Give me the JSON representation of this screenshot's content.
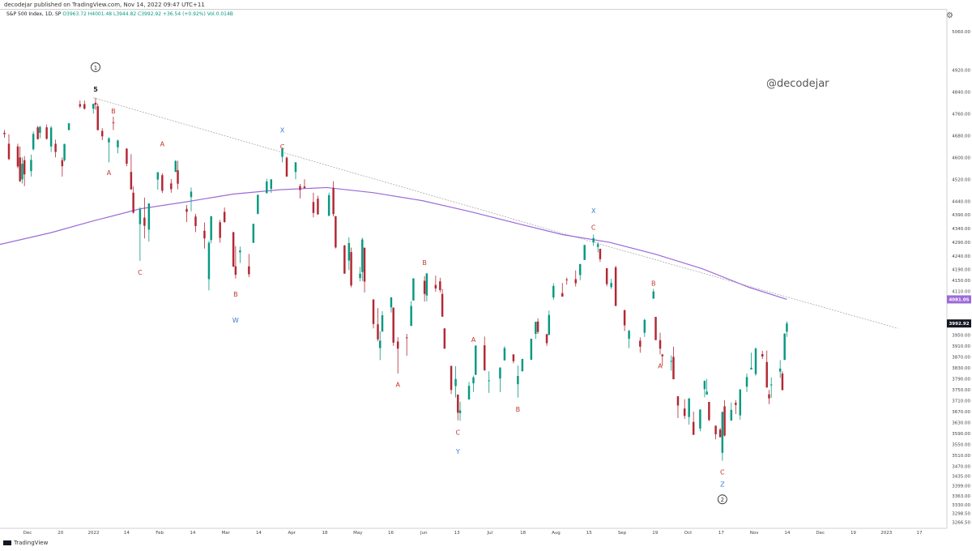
{
  "header": {
    "published": "decodejar published on TradingView.com, Nov 14, 2022 09:47 UTC+11"
  },
  "legend": {
    "symbol": "S&P 500 Index, 1D, SP",
    "ohlc": "O3963.72 H4001.48 L3944.82 C3992.92 +36.54 (+0.92%) Vol.0.014B"
  },
  "watermark": "@decodejar",
  "settings_icon": "gear-icon",
  "footer": {
    "logo_icon": "tradingview-logo-icon",
    "brand": "TradingView"
  },
  "colors": {
    "up": "#089981",
    "down": "#b22833",
    "ma": "#9c6ad8",
    "wave_abc": "#c0392b",
    "wave_wxyz": "#3a7bd5",
    "trendline": "#aaaaaa"
  },
  "chart_data": {
    "type": "candlestick",
    "y_axis": {
      "ticks": [
        "5060.00",
        "4920.00",
        "4840.00",
        "4760.00",
        "4680.00",
        "4600.00",
        "4520.00",
        "4440.00",
        "4390.00",
        "4340.00",
        "4290.00",
        "4240.00",
        "4190.00",
        "4150.00",
        "4110.00",
        "4000.00",
        "3950.00",
        "3910.00",
        "3870.00",
        "3830.00",
        "3790.00",
        "3750.00",
        "3710.00",
        "3670.00",
        "3630.00",
        "3590.00",
        "3550.00",
        "3510.00",
        "3470.00",
        "3435.00",
        "3399.00",
        "3363.00",
        "3330.00",
        "3298.50",
        "3266.50"
      ],
      "range": [
        3250,
        5140
      ],
      "last_price_label": "3992.92",
      "ma_label": "4081.05"
    },
    "x_axis": {
      "ticks": [
        "Dec",
        "20",
        "2022",
        "14",
        "Feb",
        "14",
        "Mar",
        "14",
        "Apr",
        "18",
        "May",
        "16",
        "Jun",
        "13",
        "Jul",
        "18",
        "Aug",
        "15",
        "Sep",
        "19",
        "Oct",
        "17",
        "Nov",
        "14",
        "Dec",
        "19",
        "2023",
        "17"
      ],
      "start": "2021-11-22",
      "end": "2023-01-22"
    },
    "ohlc": [
      [
        "2021-11-24",
        4690,
        4700,
        4672,
        4685
      ],
      [
        "2021-11-26",
        4650,
        4685,
        4590,
        4594
      ],
      [
        "2021-11-30",
        4640,
        4650,
        4560,
        4567
      ],
      [
        "2021-12-01",
        4600,
        4640,
        4510,
        4513
      ],
      [
        "2021-12-02",
        4520,
        4600,
        4505,
        4577
      ],
      [
        "2021-12-03",
        4590,
        4605,
        4495,
        4538
      ],
      [
        "2021-12-06",
        4550,
        4610,
        4530,
        4591
      ],
      [
        "2021-12-07",
        4630,
        4695,
        4625,
        4686
      ],
      [
        "2021-12-09",
        4710,
        4715,
        4665,
        4667
      ],
      [
        "2021-12-10",
        4690,
        4715,
        4670,
        4712
      ],
      [
        "2021-12-13",
        4710,
        4720,
        4665,
        4668
      ],
      [
        "2021-12-15",
        4640,
        4715,
        4620,
        4709
      ],
      [
        "2021-12-17",
        4650,
        4665,
        4600,
        4620
      ],
      [
        "2021-12-20",
        4590,
        4600,
        4530,
        4568
      ],
      [
        "2021-12-21",
        4590,
        4650,
        4585,
        4649
      ],
      [
        "2021-12-23",
        4700,
        4725,
        4700,
        4725
      ],
      [
        "2021-12-28",
        4795,
        4808,
        4780,
        4786
      ],
      [
        "2021-12-30",
        4795,
        4808,
        4775,
        4778
      ],
      [
        "2022-01-03",
        4778,
        4796,
        4760,
        4796
      ],
      [
        "2022-01-04",
        4800,
        4818,
        4774,
        4793
      ],
      [
        "2022-01-05",
        4787,
        4797,
        4699,
        4700
      ],
      [
        "2022-01-07",
        4697,
        4707,
        4663,
        4677
      ],
      [
        "2022-01-10",
        4655,
        4673,
        4582,
        4670
      ],
      [
        "2022-01-12",
        4728,
        4749,
        4700,
        4726
      ],
      [
        "2022-01-14",
        4637,
        4665,
        4615,
        4662
      ],
      [
        "2022-01-18",
        4632,
        4634,
        4568,
        4577
      ],
      [
        "2022-01-20",
        4547,
        4612,
        4483,
        4483
      ],
      [
        "2022-01-21",
        4471,
        4494,
        4395,
        4398
      ],
      [
        "2022-01-24",
        4356,
        4418,
        4222,
        4410
      ],
      [
        "2022-01-26",
        4380,
        4453,
        4304,
        4350
      ],
      [
        "2022-01-28",
        4336,
        4432,
        4292,
        4432
      ],
      [
        "2022-02-01",
        4519,
        4546,
        4482,
        4546
      ],
      [
        "2022-02-03",
        4535,
        4542,
        4470,
        4478
      ],
      [
        "2022-02-07",
        4505,
        4521,
        4471,
        4484
      ],
      [
        "2022-02-09",
        4547,
        4590,
        4547,
        4587
      ],
      [
        "2022-02-10",
        4553,
        4588,
        4484,
        4504
      ],
      [
        "2022-02-14",
        4412,
        4426,
        4364,
        4401
      ],
      [
        "2022-02-16",
        4455,
        4490,
        4403,
        4475
      ],
      [
        "2022-02-18",
        4384,
        4394,
        4327,
        4349
      ],
      [
        "2022-02-22",
        4332,
        4362,
        4267,
        4304
      ],
      [
        "2022-02-24",
        4155,
        4295,
        4114,
        4288
      ],
      [
        "2022-02-25",
        4298,
        4385,
        4286,
        4385
      ],
      [
        "2022-03-01",
        4363,
        4372,
        4288,
        4306
      ],
      [
        "2022-03-03",
        4401,
        4417,
        4361,
        4364
      ],
      [
        "2022-03-07",
        4327,
        4327,
        4199,
        4201
      ],
      [
        "2022-03-08",
        4202,
        4276,
        4157,
        4171
      ],
      [
        "2022-03-10",
        4253,
        4274,
        4214,
        4260
      ],
      [
        "2022-03-14",
        4202,
        4247,
        4162,
        4173
      ],
      [
        "2022-03-16",
        4288,
        4358,
        4287,
        4357
      ],
      [
        "2022-03-18",
        4394,
        4465,
        4392,
        4463
      ],
      [
        "2022-03-22",
        4469,
        4522,
        4469,
        4512
      ],
      [
        "2022-03-24",
        4485,
        4520,
        4470,
        4520
      ],
      [
        "2022-03-29",
        4602,
        4637,
        4582,
        4631
      ],
      [
        "2022-03-31",
        4599,
        4603,
        4530,
        4530
      ],
      [
        "2022-04-04",
        4547,
        4583,
        4520,
        4582
      ],
      [
        "2022-04-06",
        4495,
        4503,
        4450,
        4481
      ],
      [
        "2022-04-08",
        4494,
        4520,
        4487,
        4488
      ],
      [
        "2022-04-12",
        4437,
        4471,
        4381,
        4397
      ],
      [
        "2022-04-14",
        4449,
        4460,
        4390,
        4392
      ],
      [
        "2022-04-19",
        4387,
        4471,
        4385,
        4462
      ],
      [
        "2022-04-21",
        4489,
        4513,
        4384,
        4393
      ],
      [
        "2022-04-22",
        4385,
        4386,
        4267,
        4271
      ],
      [
        "2022-04-26",
        4278,
        4280,
        4175,
        4175
      ],
      [
        "2022-04-28",
        4223,
        4308,
        4188,
        4287
      ],
      [
        "2022-04-29",
        4254,
        4270,
        4125,
        4132
      ],
      [
        "2022-05-03",
        4159,
        4200,
        4147,
        4175
      ],
      [
        "2022-05-04",
        4181,
        4307,
        4148,
        4300
      ],
      [
        "2022-05-05",
        4270,
        4270,
        4106,
        4146
      ],
      [
        "2022-05-09",
        4081,
        4081,
        3975,
        3991
      ],
      [
        "2022-05-11",
        3990,
        4049,
        3928,
        3935
      ],
      [
        "2022-05-12",
        3903,
        3964,
        3859,
        3930
      ],
      [
        "2022-05-13",
        3963,
        4038,
        3963,
        4023
      ],
      [
        "2022-05-17",
        4052,
        4090,
        4033,
        4088
      ],
      [
        "2022-05-18",
        4051,
        4051,
        3911,
        3923
      ],
      [
        "2022-05-20",
        3927,
        3943,
        3810,
        3901
      ],
      [
        "2022-05-24",
        3942,
        3955,
        3875,
        3941
      ],
      [
        "2022-05-26",
        3984,
        4075,
        3984,
        4057
      ],
      [
        "2022-05-27",
        4077,
        4158,
        4077,
        4158
      ],
      [
        "2022-06-01",
        4149,
        4166,
        4073,
        4101
      ],
      [
        "2022-06-02",
        4095,
        4177,
        4074,
        4176
      ],
      [
        "2022-06-06",
        4134,
        4168,
        4109,
        4121
      ],
      [
        "2022-06-08",
        4147,
        4160,
        4107,
        4115
      ],
      [
        "2022-06-09",
        4101,
        4119,
        4017,
        4018
      ],
      [
        "2022-06-10",
        3975,
        3975,
        3900,
        3901
      ],
      [
        "2022-06-13",
        3838,
        3838,
        3735,
        3750
      ],
      [
        "2022-06-15",
        3764,
        3837,
        3722,
        3790
      ],
      [
        "2022-06-16",
        3733,
        3733,
        3639,
        3667
      ],
      [
        "2022-06-17",
        3665,
        3707,
        3637,
        3675
      ],
      [
        "2022-06-21",
        3715,
        3779,
        3715,
        3765
      ],
      [
        "2022-06-23",
        3774,
        3802,
        3743,
        3796
      ],
      [
        "2022-06-24",
        3805,
        3913,
        3805,
        3912
      ],
      [
        "2022-06-28",
        3913,
        3945,
        3820,
        3822
      ],
      [
        "2022-06-30",
        3785,
        3818,
        3739,
        3785
      ],
      [
        "2022-07-05",
        3792,
        3832,
        3742,
        3832
      ],
      [
        "2022-07-07",
        3858,
        3910,
        3858,
        3903
      ],
      [
        "2022-07-11",
        3880,
        3880,
        3847,
        3855
      ],
      [
        "2022-07-13",
        3771,
        3839,
        3722,
        3801
      ],
      [
        "2022-07-15",
        3818,
        3864,
        3818,
        3863
      ],
      [
        "2022-07-19",
        3860,
        3937,
        3860,
        3937
      ],
      [
        "2022-07-21",
        3955,
        3999,
        3936,
        3999
      ],
      [
        "2022-07-22",
        4000,
        4012,
        3955,
        3962
      ],
      [
        "2022-07-26",
        3954,
        3954,
        3911,
        3921
      ],
      [
        "2022-07-27",
        3951,
        4040,
        3951,
        4024
      ],
      [
        "2022-07-29",
        4088,
        4140,
        4079,
        4130
      ],
      [
        "2022-08-02",
        4104,
        4141,
        4095,
        4091
      ],
      [
        "2022-08-04",
        4154,
        4161,
        4135,
        4152
      ],
      [
        "2022-08-08",
        4155,
        4187,
        4128,
        4140
      ],
      [
        "2022-08-10",
        4170,
        4211,
        4151,
        4210
      ],
      [
        "2022-08-12",
        4225,
        4280,
        4225,
        4280
      ],
      [
        "2022-08-16",
        4290,
        4318,
        4277,
        4305
      ],
      [
        "2022-08-18",
        4273,
        4291,
        4253,
        4283
      ],
      [
        "2022-08-19",
        4266,
        4266,
        4218,
        4228
      ],
      [
        "2022-08-22",
        4195,
        4195,
        4129,
        4137
      ],
      [
        "2022-08-24",
        4126,
        4156,
        4119,
        4141
      ],
      [
        "2022-08-26",
        4198,
        4204,
        4057,
        4057
      ],
      [
        "2022-08-30",
        4041,
        4044,
        3965,
        3986
      ],
      [
        "2022-09-01",
        3937,
        3970,
        3903,
        3966
      ],
      [
        "2022-09-06",
        3930,
        3942,
        3886,
        3908
      ],
      [
        "2022-09-08",
        3959,
        4010,
        3944,
        4006
      ],
      [
        "2022-09-12",
        4084,
        4119,
        4083,
        4110
      ],
      [
        "2022-09-13",
        4017,
        4017,
        3933,
        3932
      ],
      [
        "2022-09-15",
        3932,
        3959,
        3880,
        3901
      ],
      [
        "2022-09-16",
        3880,
        3880,
        3837,
        3873
      ],
      [
        "2022-09-20",
        3855,
        3876,
        3820,
        3856
      ],
      [
        "2022-09-21",
        3871,
        3908,
        3789,
        3789
      ],
      [
        "2022-09-23",
        3727,
        3727,
        3647,
        3693
      ],
      [
        "2022-09-26",
        3682,
        3716,
        3644,
        3655
      ],
      [
        "2022-09-28",
        3651,
        3720,
        3623,
        3719
      ],
      [
        "2022-09-30",
        3633,
        3671,
        3585,
        3586
      ],
      [
        "2022-10-03",
        3609,
        3680,
        3599,
        3678
      ],
      [
        "2022-10-05",
        3753,
        3785,
        3723,
        3783
      ],
      [
        "2022-10-06",
        3733,
        3790,
        3741,
        3744
      ],
      [
        "2022-10-07",
        3706,
        3706,
        3636,
        3640
      ],
      [
        "2022-10-10",
        3619,
        3620,
        3569,
        3588
      ],
      [
        "2022-10-12",
        3605,
        3611,
        3588,
        3577
      ],
      [
        "2022-10-13",
        3520,
        3670,
        3491,
        3670
      ],
      [
        "2022-10-14",
        3690,
        3712,
        3580,
        3583
      ],
      [
        "2022-10-17",
        3638,
        3704,
        3638,
        3677
      ],
      [
        "2022-10-19",
        3703,
        3713,
        3662,
        3695
      ],
      [
        "2022-10-21",
        3657,
        3752,
        3641,
        3752
      ],
      [
        "2022-10-24",
        3762,
        3810,
        3742,
        3797
      ],
      [
        "2022-10-26",
        3825,
        3886,
        3824,
        3831
      ],
      [
        "2022-10-28",
        3808,
        3905,
        3802,
        3901
      ],
      [
        "2022-10-31",
        3881,
        3893,
        3863,
        3872
      ],
      [
        "2022-11-02",
        3852,
        3894,
        3758,
        3759
      ],
      [
        "2022-11-03",
        3734,
        3750,
        3698,
        3719
      ],
      [
        "2022-11-04",
        3767,
        3796,
        3721,
        3770
      ],
      [
        "2022-11-08",
        3817,
        3859,
        3794,
        3828
      ],
      [
        "2022-11-09",
        3810,
        3818,
        3749,
        3749
      ],
      [
        "2022-11-10",
        3860,
        3957,
        3859,
        3956
      ],
      [
        "2022-11-11",
        3963,
        4001,
        3944,
        3993
      ]
    ],
    "moving_average": [
      [
        "2021-11-22",
        4282
      ],
      [
        "2021-12-15",
        4325
      ],
      [
        "2022-01-03",
        4368
      ],
      [
        "2022-01-24",
        4412
      ],
      [
        "2022-02-14",
        4438
      ],
      [
        "2022-03-07",
        4466
      ],
      [
        "2022-03-28",
        4482
      ],
      [
        "2022-04-18",
        4490
      ],
      [
        "2022-05-09",
        4471
      ],
      [
        "2022-05-31",
        4442
      ],
      [
        "2022-06-21",
        4403
      ],
      [
        "2022-07-12",
        4360
      ],
      [
        "2022-08-02",
        4318
      ],
      [
        "2022-08-23",
        4290
      ],
      [
        "2022-09-13",
        4246
      ],
      [
        "2022-10-04",
        4193
      ],
      [
        "2022-10-25",
        4125
      ],
      [
        "2022-11-11",
        4081
      ]
    ],
    "trendline": [
      [
        "2022-01-03",
        4818
      ],
      [
        "2022-08-16",
        4290
      ],
      [
        "2022-12-31",
        3975
      ]
    ],
    "annotations": [
      {
        "text": "①",
        "date": "2022-01-04",
        "price": 4930,
        "kind": "circled"
      },
      {
        "text": "5",
        "date": "2022-01-04",
        "price": 4850,
        "kind": "wave5"
      },
      {
        "text": "B",
        "date": "2022-01-12",
        "price": 4770,
        "kind": "abc"
      },
      {
        "text": "A",
        "date": "2022-01-10",
        "price": 4545,
        "kind": "abc"
      },
      {
        "text": "A",
        "date": "2022-02-03",
        "price": 4650,
        "kind": "abc"
      },
      {
        "text": "C",
        "date": "2022-01-24",
        "price": 4180,
        "kind": "abc"
      },
      {
        "text": "B",
        "date": "2022-03-08",
        "price": 4100,
        "kind": "abc"
      },
      {
        "text": "W",
        "date": "2022-03-08",
        "price": 4005,
        "kind": "wxyz"
      },
      {
        "text": "X",
        "date": "2022-03-29",
        "price": 4700,
        "kind": "wxyz"
      },
      {
        "text": "C",
        "date": "2022-03-29",
        "price": 4640,
        "kind": "abc"
      },
      {
        "text": "B",
        "date": "2022-06-01",
        "price": 4215,
        "kind": "abc"
      },
      {
        "text": "A",
        "date": "2022-05-20",
        "price": 3770,
        "kind": "abc"
      },
      {
        "text": "A",
        "date": "2022-06-23",
        "price": 3935,
        "kind": "abc"
      },
      {
        "text": "C",
        "date": "2022-06-16",
        "price": 3595,
        "kind": "abc"
      },
      {
        "text": "Y",
        "date": "2022-06-16",
        "price": 3525,
        "kind": "wxyz"
      },
      {
        "text": "B",
        "date": "2022-07-13",
        "price": 3680,
        "kind": "abc"
      },
      {
        "text": "X",
        "date": "2022-08-16",
        "price": 4405,
        "kind": "wxyz"
      },
      {
        "text": "C",
        "date": "2022-08-16",
        "price": 4345,
        "kind": "abc"
      },
      {
        "text": "B",
        "date": "2022-09-12",
        "price": 4140,
        "kind": "abc"
      },
      {
        "text": "A",
        "date": "2022-09-15",
        "price": 3838,
        "kind": "abc"
      },
      {
        "text": "C",
        "date": "2022-10-13",
        "price": 3450,
        "kind": "abc"
      },
      {
        "text": "Z",
        "date": "2022-10-13",
        "price": 3405,
        "kind": "wxyz"
      },
      {
        "text": "②",
        "date": "2022-10-13",
        "price": 3350,
        "kind": "circled"
      }
    ]
  }
}
